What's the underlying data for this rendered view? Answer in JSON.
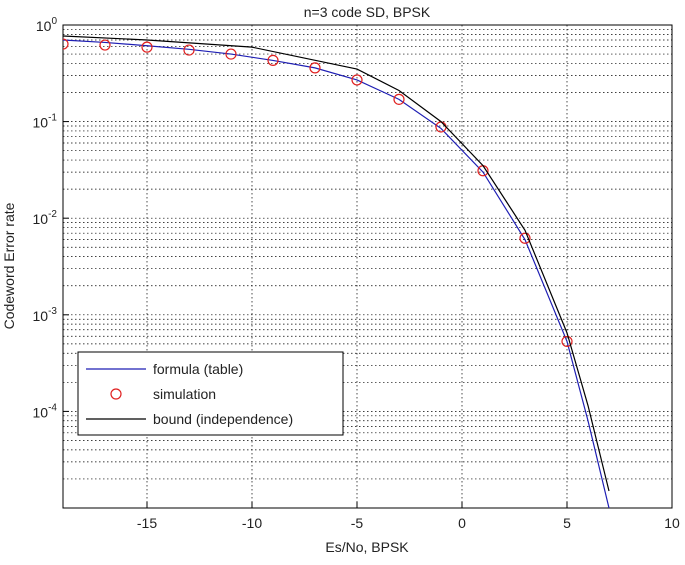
{
  "chart_data": {
    "type": "line",
    "title": "n=3 code SD, BPSK",
    "x_label": "Es/No, BPSK",
    "y_label": "Codeword Error rate",
    "log_y": true,
    "grid": true,
    "minor_grid": true,
    "legend": "lower left",
    "xlim": [
      -19,
      10
    ],
    "xticks": [
      -15,
      -10,
      -5,
      0,
      5,
      10
    ],
    "ylim": [
      1e-05,
      1
    ],
    "yticks": [
      {
        "value": 1,
        "label": "10^0"
      },
      {
        "value": 0.1,
        "label": "10^-1"
      },
      {
        "value": 0.01,
        "label": "10^-2"
      },
      {
        "value": 0.001,
        "label": "10^-3"
      },
      {
        "value": 0.0001,
        "label": "10^-4"
      }
    ],
    "series": [
      {
        "name": "formula (table)",
        "color": "#1f1fb4",
        "mode": "line",
        "x": [
          -19,
          -17,
          -15,
          -13,
          -11,
          -9,
          -7,
          -5,
          -3,
          -1,
          1,
          3,
          5,
          6,
          7
        ],
        "values": [
          0.7,
          0.66,
          0.61,
          0.56,
          0.5,
          0.43,
          0.36,
          0.27,
          0.17,
          0.085,
          0.03,
          0.006,
          0.00053,
          8e-05,
          1e-05
        ]
      },
      {
        "name": "simulation",
        "color": "#e02020",
        "mode": "markers",
        "x": [
          -19,
          -17,
          -15,
          -13,
          -11,
          -9,
          -7,
          -5,
          -3,
          -1,
          1,
          3,
          5
        ],
        "values": [
          0.635,
          0.62,
          0.59,
          0.55,
          0.5,
          0.43,
          0.36,
          0.27,
          0.17,
          0.088,
          0.031,
          0.0062,
          0.00053
        ]
      },
      {
        "name": "bound (independence)",
        "color": "#000000",
        "mode": "line",
        "x": [
          -19,
          -15,
          -10,
          -5,
          -3,
          -1,
          1,
          3,
          5,
          6,
          7
        ],
        "values": [
          0.77,
          0.7,
          0.59,
          0.35,
          0.21,
          0.1,
          0.035,
          0.0075,
          0.00065,
          0.000115,
          1.5e-05
        ]
      }
    ]
  }
}
